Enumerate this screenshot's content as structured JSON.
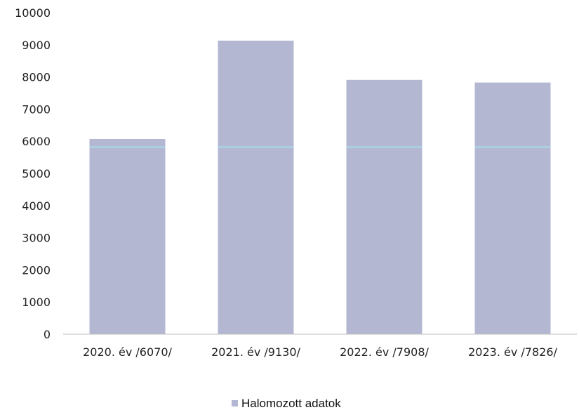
{
  "chart_data": {
    "type": "bar",
    "categories": [
      "2020. év /6070/",
      "2021. év /9130/",
      "2022. év /7908/",
      "2023. év /7826/"
    ],
    "series": [
      {
        "name": "Halomozott adatok",
        "values": [
          6070,
          9130,
          7908,
          7826
        ]
      }
    ],
    "yticks": [
      "0",
      "1000",
      "2000",
      "3000",
      "4000",
      "5000",
      "6000",
      "7000",
      "8000",
      "9000",
      "10000"
    ],
    "ylim": [
      0,
      10000
    ],
    "grid": false,
    "legend": "bottom-center",
    "colors": {
      "bar": "#b4b7d2",
      "bar_highlight": "#a9cfe0",
      "axis": "#bfbfbf"
    }
  }
}
